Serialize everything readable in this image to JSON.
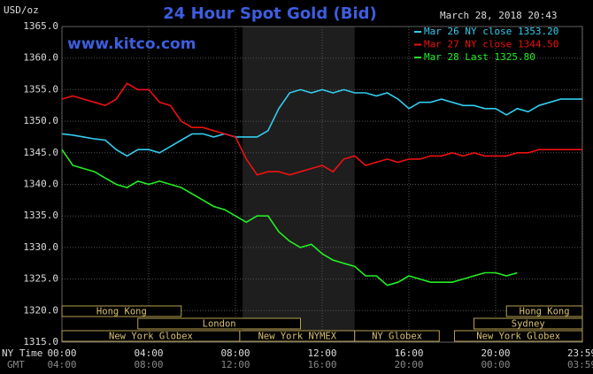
{
  "chart_data": {
    "type": "line",
    "title": "24 Hour Spot Gold (Bid)",
    "timestamp": "March 28, 2018 20:43",
    "y_label": "USD/oz",
    "watermark": "www.kitco.com",
    "x_label": "NY Time",
    "x2_label": "GMT",
    "x": [
      0,
      0.5,
      1,
      1.5,
      2,
      2.5,
      3,
      3.5,
      4,
      4.5,
      5,
      5.5,
      6,
      6.5,
      7,
      7.5,
      8,
      8.5,
      9,
      9.5,
      10,
      10.5,
      11,
      11.5,
      12,
      12.5,
      13,
      13.5,
      14,
      14.5,
      15,
      15.5,
      16,
      16.5,
      17,
      17.5,
      18,
      18.5,
      19,
      19.5,
      20,
      20.5,
      21,
      21.5,
      22,
      22.5,
      23,
      23.5,
      24
    ],
    "xlim": [
      0,
      24
    ],
    "xticks": [
      {
        "value": 0,
        "label": "00:00"
      },
      {
        "value": 4,
        "label": "04:00"
      },
      {
        "value": 8,
        "label": "08:00"
      },
      {
        "value": 12,
        "label": "12:00"
      },
      {
        "value": 16,
        "label": "16:00"
      },
      {
        "value": 20,
        "label": "20:00"
      },
      {
        "value": 23.98,
        "label": "23:59"
      }
    ],
    "x2ticks": [
      "04:00",
      "08:00",
      "12:00",
      "16:00",
      "20:00",
      "00:00",
      "03:59"
    ],
    "ylim": [
      1315,
      1365
    ],
    "yticks": [
      {
        "value": 1315,
        "label": "1315.0"
      },
      {
        "value": 1320,
        "label": "1320.0"
      },
      {
        "value": 1325,
        "label": "1325.0"
      },
      {
        "value": 1330,
        "label": "1330.0"
      },
      {
        "value": 1335,
        "label": "1335.0"
      },
      {
        "value": 1340,
        "label": "1340.0"
      },
      {
        "value": 1345,
        "label": "1345.0"
      },
      {
        "value": 1350,
        "label": "1350.0"
      },
      {
        "value": 1355,
        "label": "1355.0"
      },
      {
        "value": 1360,
        "label": "1360.0"
      },
      {
        "value": 1365,
        "label": "1365.0"
      }
    ],
    "grid": true,
    "shade": [
      8.33,
      13.5
    ],
    "series": [
      {
        "name": "Mar 26 NY close 1353.20",
        "color": "#33ccee",
        "values": [
          1348,
          1347.8,
          1347.5,
          1347.2,
          1347,
          1345.5,
          1344.5,
          1345.5,
          1345.5,
          1345,
          1346,
          1347,
          1348,
          1348,
          1347.5,
          1348,
          1347.5,
          1347.5,
          1347.5,
          1348.5,
          1352,
          1354.5,
          1355,
          1354.5,
          1355,
          1354.5,
          1355,
          1354.5,
          1354.5,
          1354,
          1354.5,
          1353.5,
          1352,
          1353,
          1353,
          1353.5,
          1353,
          1352.5,
          1352.5,
          1352,
          1352,
          1351,
          1352,
          1351.5,
          1352.5,
          1353,
          1353.5,
          1353.5,
          1353.5
        ]
      },
      {
        "name": "Mar 27 NY close 1344.50",
        "color": "#ee1111",
        "values": [
          1353.5,
          1354,
          1353.5,
          1353,
          1352.5,
          1353.5,
          1356,
          1355,
          1355,
          1353,
          1352.5,
          1350,
          1349,
          1349,
          1348.5,
          1348,
          1347.5,
          1344,
          1341.5,
          1342,
          1342,
          1341.5,
          1342,
          1342.5,
          1343,
          1342,
          1344,
          1344.5,
          1343,
          1343.5,
          1344,
          1343.5,
          1344,
          1344,
          1344.5,
          1344.5,
          1345,
          1344.5,
          1345,
          1344.5,
          1344.5,
          1344.5,
          1345,
          1345,
          1345.5,
          1345.5,
          1345.5,
          1345.5,
          1345.5
        ]
      },
      {
        "name": "Mar 28 Last 1325.80",
        "color": "#22ee22",
        "values": [
          1345.5,
          1343,
          1342.5,
          1342,
          1341,
          1340,
          1339.5,
          1340.5,
          1340,
          1340.5,
          1340,
          1339.5,
          1338.5,
          1337.5,
          1336.5,
          1336,
          1335,
          1334,
          1335,
          1335,
          1332.5,
          1331,
          1330,
          1330.5,
          1329,
          1328,
          1327.5,
          1327,
          1325.5,
          1325.5,
          1324,
          1324.5,
          1325.5,
          1325,
          1324.5,
          1324.5,
          1324.5,
          1325,
          1325.5,
          1326,
          1326,
          1325.5,
          1326,
          null,
          null,
          null,
          null,
          null,
          null
        ]
      }
    ],
    "sessions": [
      {
        "label": "Hong Kong",
        "row": 0,
        "start": 0,
        "end": 5.5
      },
      {
        "label": "Hong Kong",
        "row": 0,
        "start": 20.5,
        "end": 24
      },
      {
        "label": "London",
        "row": 1,
        "start": 3.5,
        "end": 11
      },
      {
        "label": "Sydney",
        "row": 1,
        "start": 19,
        "end": 24
      },
      {
        "label": "New York Globex",
        "row": 2,
        "start": 0,
        "end": 8.2
      },
      {
        "label": "New York NYMEX",
        "row": 2,
        "start": 8.2,
        "end": 13.5
      },
      {
        "label": "NY Globex",
        "row": 2,
        "start": 13.5,
        "end": 17.4
      },
      {
        "label": "New York Globex",
        "row": 2,
        "start": 18.1,
        "end": 24
      }
    ]
  }
}
